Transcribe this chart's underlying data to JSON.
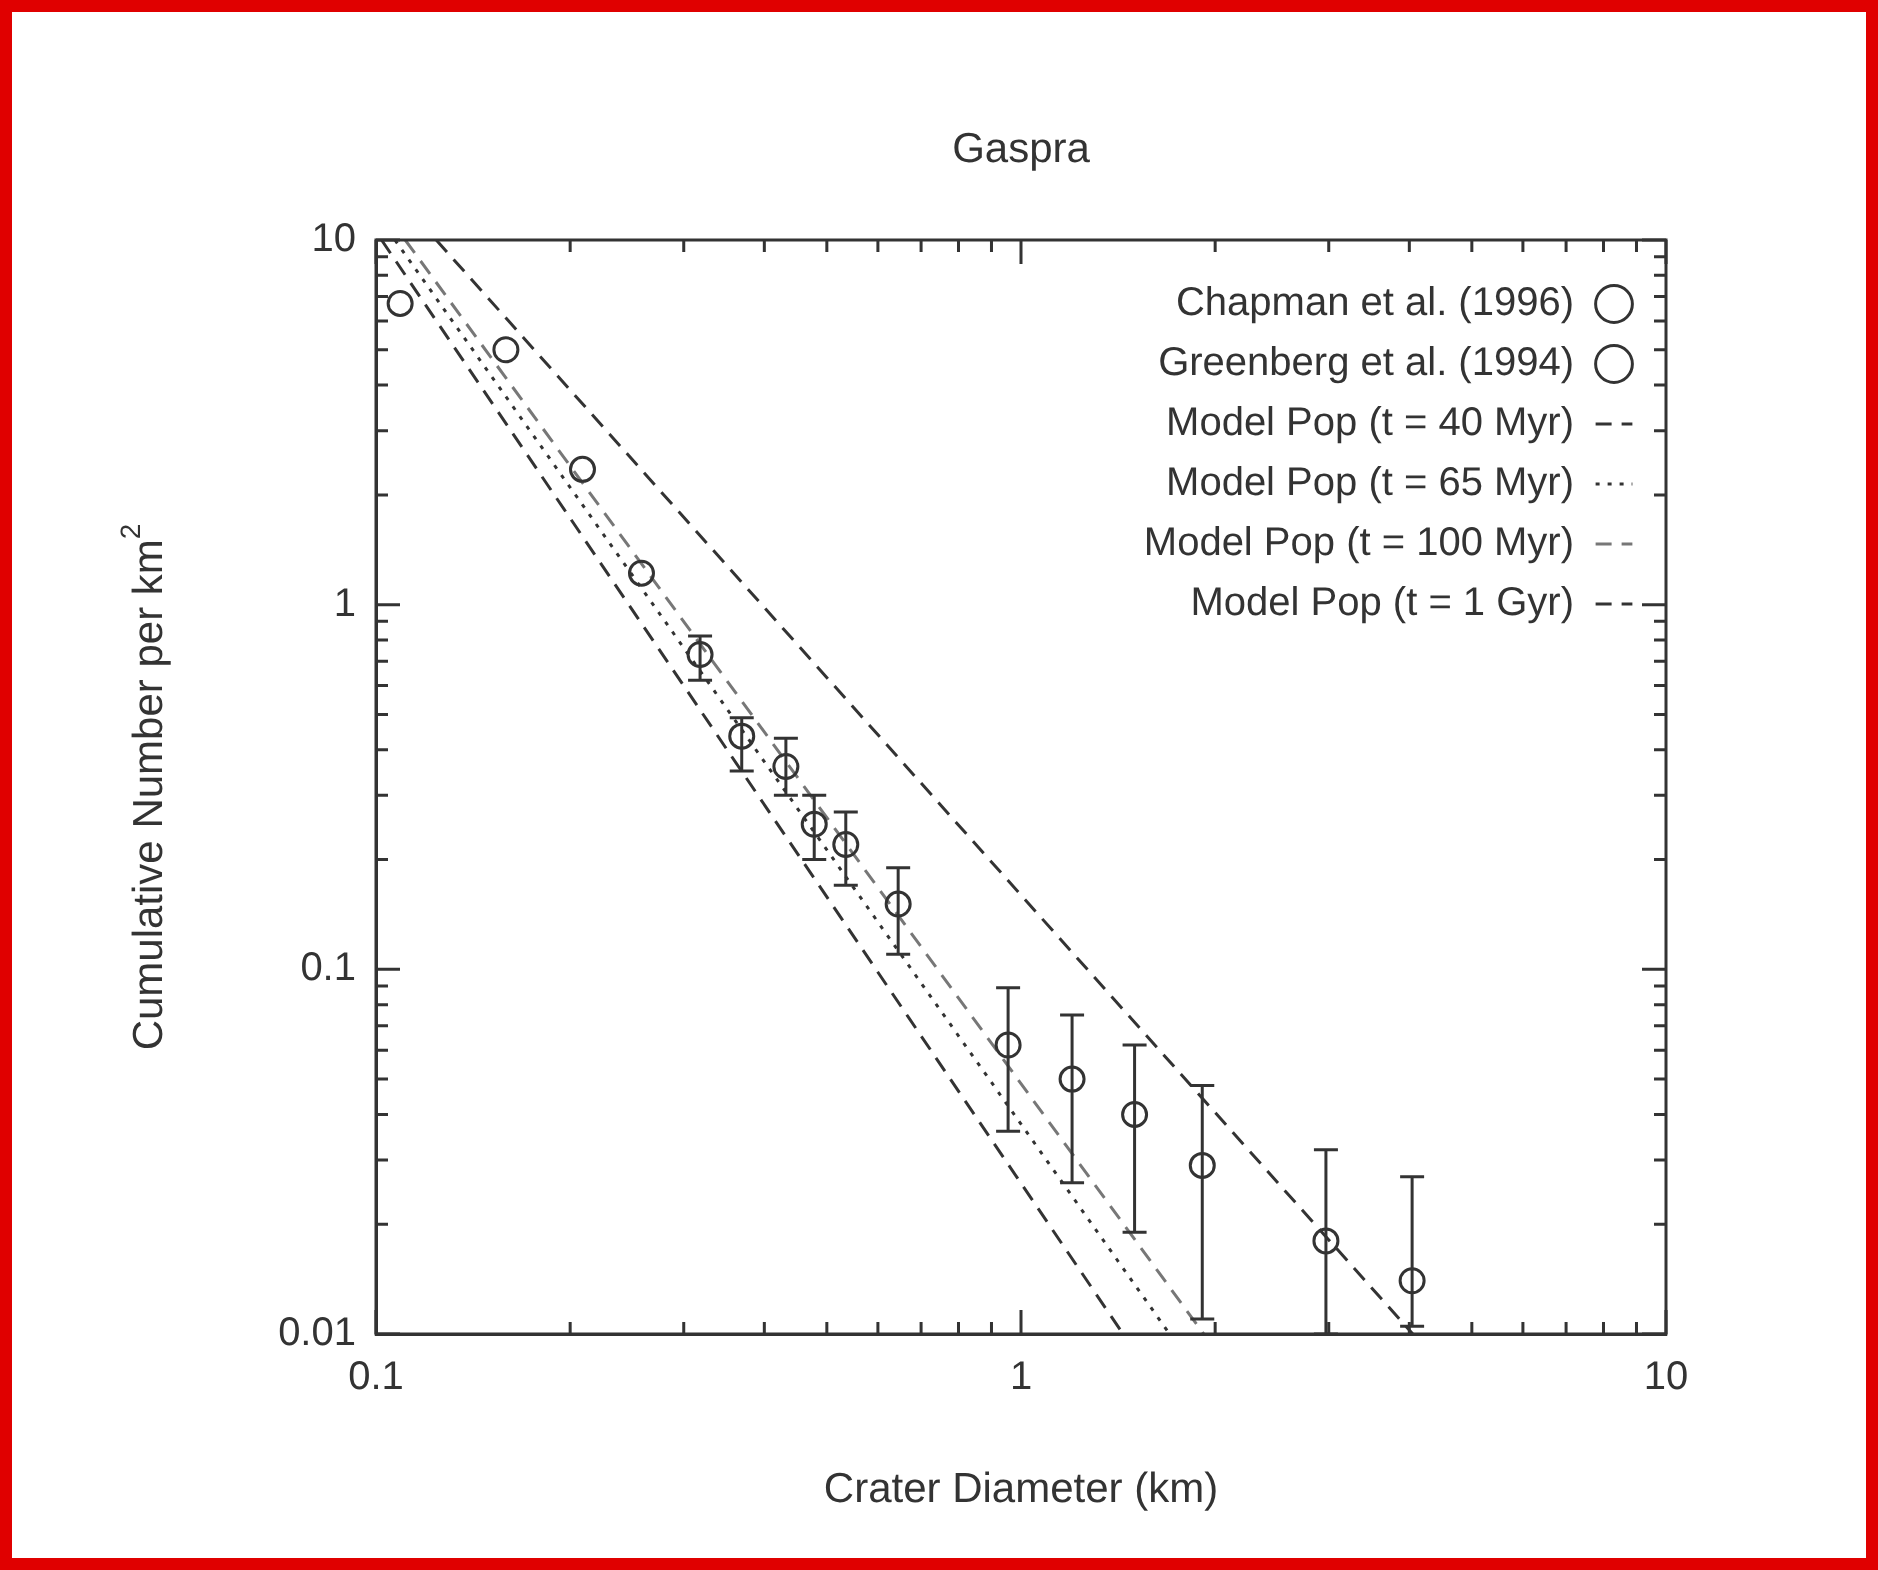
{
  "chart_data": {
    "type": "scatter",
    "title": "Gaspra",
    "xlabel": "Crater Diameter (km)",
    "ylabel": "Cumulative Number per km$^{2}$",
    "log": "xy",
    "grid": false,
    "legend": "top right",
    "xlim": [
      0.1,
      10
    ],
    "ylim": [
      0.01,
      10
    ],
    "xticks": [
      0.1,
      {
        "value": 0.2,
        "label": null
      },
      {
        "value": 0.3,
        "label": null
      },
      {
        "value": 0.4,
        "label": null
      },
      {
        "value": 0.5,
        "label": null
      },
      {
        "value": 0.6,
        "label": null
      },
      {
        "value": 0.7,
        "label": null
      },
      {
        "value": 0.8,
        "label": null
      },
      {
        "value": 0.9,
        "label": null
      },
      1,
      {
        "value": 2,
        "label": null
      },
      {
        "value": 3,
        "label": null
      },
      {
        "value": 4,
        "label": null
      },
      {
        "value": 5,
        "label": null
      },
      {
        "value": 6,
        "label": null
      },
      {
        "value": 7,
        "label": null
      },
      {
        "value": 8,
        "label": null
      },
      {
        "value": 9,
        "label": null
      },
      10
    ],
    "yticks": [
      0.01,
      {
        "value": 0.02,
        "label": null
      },
      {
        "value": 0.03,
        "label": null
      },
      {
        "value": 0.04,
        "label": null
      },
      {
        "value": 0.05,
        "label": null
      },
      {
        "value": 0.06,
        "label": null
      },
      {
        "value": 0.07,
        "label": null
      },
      {
        "value": 0.08,
        "label": null
      },
      {
        "value": 0.09,
        "label": null
      },
      0.1,
      {
        "value": 0.2,
        "label": null
      },
      {
        "value": 0.3,
        "label": null
      },
      {
        "value": 0.4,
        "label": null
      },
      {
        "value": 0.5,
        "label": null
      },
      {
        "value": 0.6,
        "label": null
      },
      {
        "value": 0.7,
        "label": null
      },
      {
        "value": 0.8,
        "label": null
      },
      {
        "value": 0.9,
        "label": null
      },
      1,
      {
        "value": 2,
        "label": null
      },
      {
        "value": 3,
        "label": null
      },
      {
        "value": 4,
        "label": null
      },
      {
        "value": 5,
        "label": null
      },
      {
        "value": 6,
        "label": null
      },
      {
        "value": 7,
        "label": null
      },
      {
        "value": 8,
        "label": null
      },
      {
        "value": 9,
        "label": null
      },
      10
    ],
    "series": [
      {
        "name": "Chapman et al. (1996)",
        "type": "scatter",
        "color": "#333333",
        "marker": "circle",
        "x": [
          0.369,
          0.432,
          0.478,
          0.535,
          0.645,
          0.955,
          1.2,
          1.5,
          1.91,
          2.97,
          4.04
        ],
        "values": [
          0.436,
          0.36,
          0.25,
          0.22,
          0.151,
          0.062,
          0.05,
          0.04,
          0.029,
          0.018,
          0.014
        ],
        "errors": [
          [
            0.35,
            0.49
          ],
          [
            0.3,
            0.43
          ],
          [
            0.2,
            0.3
          ],
          [
            0.17,
            0.27
          ],
          [
            0.11,
            0.19
          ],
          [
            0.036,
            0.089
          ],
          [
            0.026,
            0.075
          ],
          [
            0.019,
            0.062
          ],
          [
            0.011,
            0.048
          ],
          [
            0.01,
            0.032
          ],
          [
            0.0105,
            0.027
          ]
        ]
      },
      {
        "name": "Greenberg et al. (1994)",
        "type": "scatter",
        "color": "#333333",
        "marker": "circle",
        "x": [
          0.109,
          0.159,
          0.209,
          0.258,
          0.318
        ],
        "values": [
          6.7,
          5.0,
          2.35,
          1.22,
          0.73
        ],
        "errors": [
          null,
          null,
          null,
          null,
          [
            0.62,
            0.82
          ]
        ]
      },
      {
        "name": "Model Pop (t = 40 Myr)",
        "type": "line",
        "color": "#333333",
        "line_style": "dashed",
        "x": [
          0.102,
          1.44
        ],
        "values": [
          10,
          0.01
        ]
      },
      {
        "name": "Model Pop (t = 65 Myr)",
        "type": "line",
        "color": "#333333",
        "line_style": "dotted",
        "x": [
          0.107,
          1.7
        ],
        "values": [
          10,
          0.01
        ]
      },
      {
        "name": "Model Pop (t = 100 Myr)",
        "type": "line",
        "color": "#777777",
        "line_style": "dashed",
        "x": [
          0.111,
          1.92
        ],
        "values": [
          10,
          0.01
        ]
      },
      {
        "name": "Model Pop (t = 1 Gyr)",
        "type": "line",
        "color": "#333333",
        "line_style": "dashed",
        "x": [
          0.124,
          4.05
        ],
        "values": [
          10,
          0.01
        ]
      }
    ]
  }
}
